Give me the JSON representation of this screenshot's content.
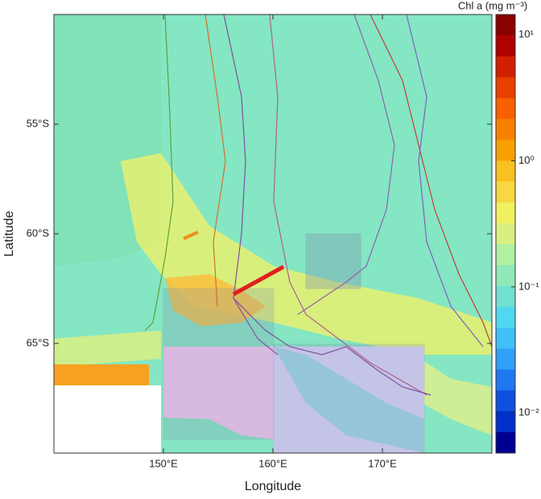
{
  "chart_data": {
    "type": "map",
    "xlabel": "Longitude",
    "ylabel": "Latitude",
    "xlim": [
      140,
      180
    ],
    "ylim": [
      -70,
      -50
    ],
    "xticks": [
      {
        "value": 150,
        "label": "150°E"
      },
      {
        "value": 160,
        "label": "160°E"
      },
      {
        "value": 170,
        "label": "170°E"
      }
    ],
    "yticks": [
      {
        "value": -55,
        "label": "55°S"
      },
      {
        "value": -60,
        "label": "60°S"
      },
      {
        "value": -65,
        "label": "65°S"
      }
    ],
    "colorbar": {
      "title": "Chl a (mg m⁻³)",
      "log": true,
      "lim": [
        0.0048,
        14.5
      ],
      "ticks": [
        {
          "value": 10,
          "label": "10¹"
        },
        {
          "value": 1,
          "label": "10⁰"
        },
        {
          "value": 0.1,
          "label": "10⁻¹"
        },
        {
          "value": 0.01,
          "label": "10⁻²"
        }
      ],
      "colors": [
        "#8b0000",
        "#b00000",
        "#d02000",
        "#e84000",
        "#f86000",
        "#f88000",
        "#f8a000",
        "#f8c020",
        "#f8d840",
        "#f0f060",
        "#d8f080",
        "#b0f0a0",
        "#90e8b8",
        "#70e0d0",
        "#50d8f0",
        "#40c0f8",
        "#30a0f8",
        "#2078f0",
        "#1050e0",
        "#0030c8",
        "#000090"
      ]
    }
  }
}
